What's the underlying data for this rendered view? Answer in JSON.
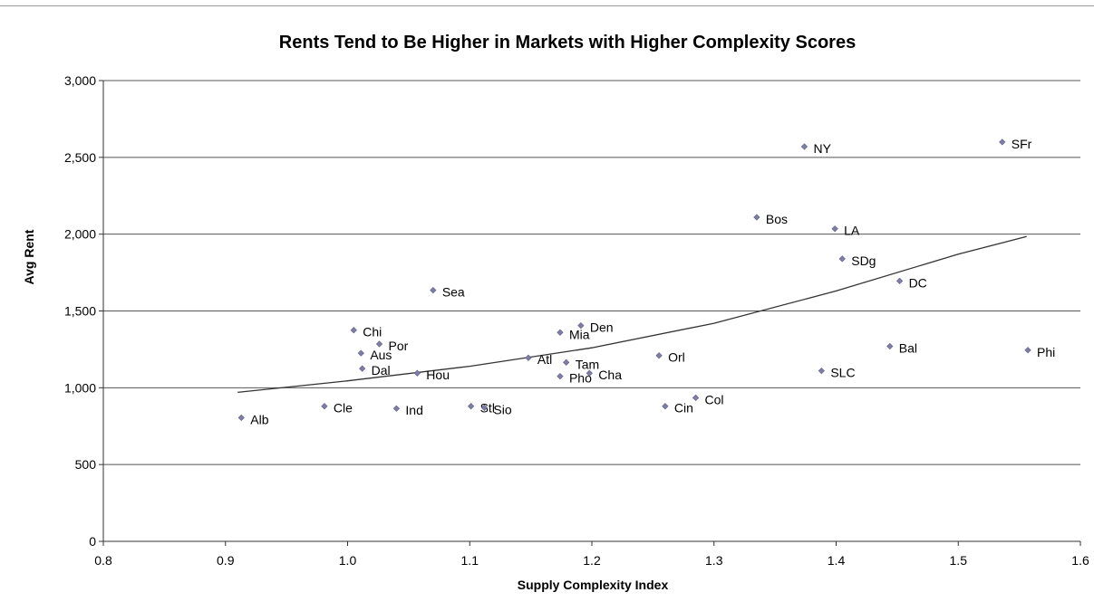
{
  "chart_data": {
    "type": "scatter",
    "title": "Rents Tend to Be Higher in Markets with Higher Complexity Scores",
    "xlabel": "Supply Complexity Index",
    "ylabel": "Avg Rent",
    "xlim": [
      0.8,
      1.6
    ],
    "ylim": [
      0,
      3000
    ],
    "x_ticks": [
      {
        "value": 0.8,
        "label": "0.8"
      },
      {
        "value": 0.9,
        "label": "0.9"
      },
      {
        "value": 1.0,
        "label": "1.0"
      },
      {
        "value": 1.1,
        "label": "1.1"
      },
      {
        "value": 1.2,
        "label": "1.2"
      },
      {
        "value": 1.3,
        "label": "1.3"
      },
      {
        "value": 1.4,
        "label": "1.4"
      },
      {
        "value": 1.5,
        "label": "1.5"
      },
      {
        "value": 1.6,
        "label": "1.6"
      }
    ],
    "y_ticks": [
      {
        "value": 0,
        "label": "0"
      },
      {
        "value": 500,
        "label": "500"
      },
      {
        "value": 1000,
        "label": "1,000"
      },
      {
        "value": 1500,
        "label": "1,500"
      },
      {
        "value": 2000,
        "label": "2,000"
      },
      {
        "value": 2500,
        "label": "2,500"
      },
      {
        "value": 3000,
        "label": "3,000"
      }
    ],
    "grid": "horizontal",
    "marker_color": "#7d7da6",
    "points": [
      {
        "label": "Alb",
        "x": 0.913,
        "y": 805
      },
      {
        "label": "Cle",
        "x": 0.981,
        "y": 880
      },
      {
        "label": "Ind",
        "x": 1.04,
        "y": 865
      },
      {
        "label": "Stl",
        "x": 1.101,
        "y": 880
      },
      {
        "label": "Sio",
        "x": 1.112,
        "y": 870
      },
      {
        "label": "Chi",
        "x": 1.005,
        "y": 1375
      },
      {
        "label": "Por",
        "x": 1.026,
        "y": 1285
      },
      {
        "label": "Aus",
        "x": 1.011,
        "y": 1225
      },
      {
        "label": "Dal",
        "x": 1.012,
        "y": 1125
      },
      {
        "label": "Hou",
        "x": 1.057,
        "y": 1095
      },
      {
        "label": "Sea",
        "x": 1.07,
        "y": 1635
      },
      {
        "label": "Atl",
        "x": 1.148,
        "y": 1195
      },
      {
        "label": "Mia",
        "x": 1.174,
        "y": 1360
      },
      {
        "label": "Den",
        "x": 1.191,
        "y": 1405
      },
      {
        "label": "Tam",
        "x": 1.179,
        "y": 1165
      },
      {
        "label": "Pho",
        "x": 1.174,
        "y": 1075
      },
      {
        "label": "Cha",
        "x": 1.198,
        "y": 1095
      },
      {
        "label": "Orl",
        "x": 1.255,
        "y": 1210
      },
      {
        "label": "Cin",
        "x": 1.26,
        "y": 880
      },
      {
        "label": "Col",
        "x": 1.285,
        "y": 935
      },
      {
        "label": "Bos",
        "x": 1.335,
        "y": 2110
      },
      {
        "label": "NY",
        "x": 1.374,
        "y": 2570
      },
      {
        "label": "LA",
        "x": 1.399,
        "y": 2035
      },
      {
        "label": "SDg",
        "x": 1.405,
        "y": 1840
      },
      {
        "label": "SLC",
        "x": 1.388,
        "y": 1110
      },
      {
        "label": "DC",
        "x": 1.452,
        "y": 1695
      },
      {
        "label": "Bal",
        "x": 1.444,
        "y": 1270
      },
      {
        "label": "SFr",
        "x": 1.536,
        "y": 2600
      },
      {
        "label": "Phi",
        "x": 1.557,
        "y": 1245
      }
    ],
    "trendline": {
      "type": "exponential",
      "x": [
        0.91,
        1.0,
        1.1,
        1.2,
        1.3,
        1.4,
        1.5,
        1.556
      ],
      "y": [
        970,
        1045,
        1140,
        1260,
        1420,
        1630,
        1870,
        1985
      ]
    }
  }
}
